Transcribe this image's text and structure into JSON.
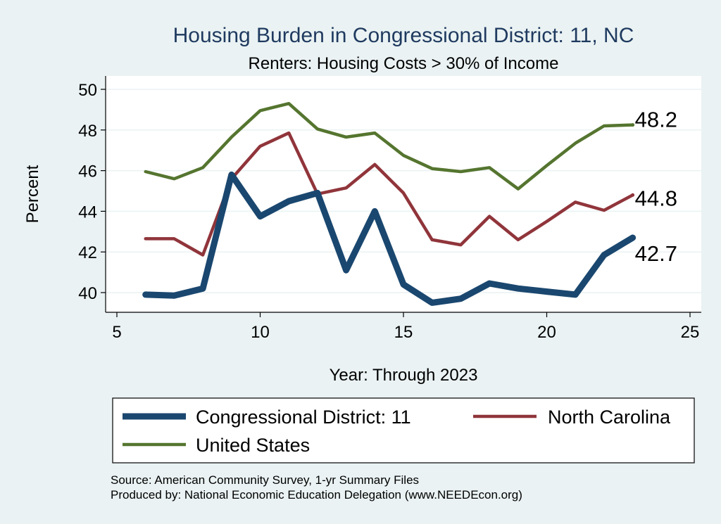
{
  "chart_data": {
    "type": "line",
    "title": "Housing Burden in Congressional District:  11, NC",
    "subtitle": "Renters: Housing Costs > 30% of Income",
    "xlabel": "Year: Through 2023",
    "ylabel": "Percent",
    "xlim": [
      5,
      25
    ],
    "ylim": [
      39.2,
      50.4
    ],
    "x_ticks": [
      "5",
      "10",
      "15",
      "20",
      "25"
    ],
    "y_ticks": [
      "40",
      "42",
      "44",
      "46",
      "48",
      "50"
    ],
    "grid": true,
    "legend_position": "bottom",
    "x": [
      6,
      7,
      8,
      9,
      10,
      11,
      12,
      13,
      14,
      15,
      16,
      17,
      18,
      19,
      20,
      21,
      22,
      23
    ],
    "series": [
      {
        "name": "Congressional District:  11",
        "color": "#1a476f",
        "values": [
          39.9,
          39.85,
          40.2,
          45.8,
          43.75,
          44.5,
          44.9,
          41.1,
          44.0,
          40.4,
          39.5,
          39.7,
          40.45,
          40.2,
          40.05,
          39.9,
          41.85,
          42.7
        ],
        "end_label": "42.7"
      },
      {
        "name": "North Carolina",
        "color": "#90353b",
        "values": [
          42.65,
          42.65,
          41.85,
          45.6,
          47.2,
          47.85,
          44.85,
          45.15,
          46.3,
          44.9,
          42.6,
          42.35,
          43.75,
          42.6,
          43.5,
          44.45,
          44.05,
          44.8
        ],
        "end_label": "44.8"
      },
      {
        "name": "United States",
        "color": "#55752f",
        "values": [
          45.95,
          45.6,
          46.15,
          47.65,
          48.95,
          49.3,
          48.05,
          47.65,
          47.85,
          46.75,
          46.1,
          45.95,
          46.15,
          45.1,
          46.25,
          47.35,
          48.2,
          48.25
        ],
        "end_label": "48.2"
      }
    ]
  },
  "legend": {
    "items": [
      "Congressional District:  11",
      "North Carolina",
      "United States"
    ]
  },
  "source": {
    "line1": "Source: American Community Survey, 1-yr Summary Files",
    "line2": "Produced by: National Economic Education Delegation (www.NEEDEcon.org)"
  }
}
